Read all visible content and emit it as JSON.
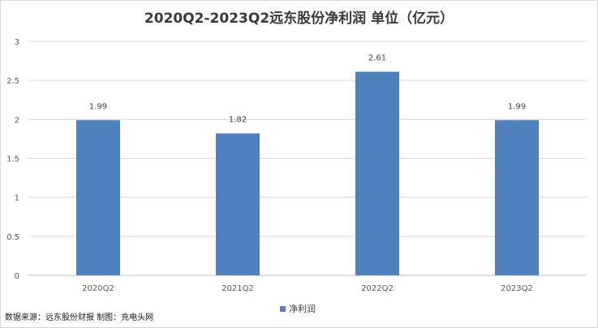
{
  "chart_data": {
    "type": "bar",
    "title": "2020Q2-2023Q2远东股份净利润 单位（亿元）",
    "categories": [
      "2020Q2",
      "2021Q2",
      "2022Q2",
      "2023Q2"
    ],
    "series": [
      {
        "name": "净利润",
        "values": [
          1.99,
          1.82,
          2.61,
          1.99
        ],
        "color": "#4f81bd"
      }
    ],
    "data_labels": [
      "1.99",
      "1.82",
      "2.61",
      "1.99"
    ],
    "yticks": [
      "0",
      "0.5",
      "1",
      "1.5",
      "2",
      "2.5",
      "3"
    ],
    "ylim": [
      0,
      3
    ],
    "grid": true,
    "legend": "bottom"
  },
  "footer": {
    "source": "数据来源：远东股份财报  制图：充电头网"
  }
}
